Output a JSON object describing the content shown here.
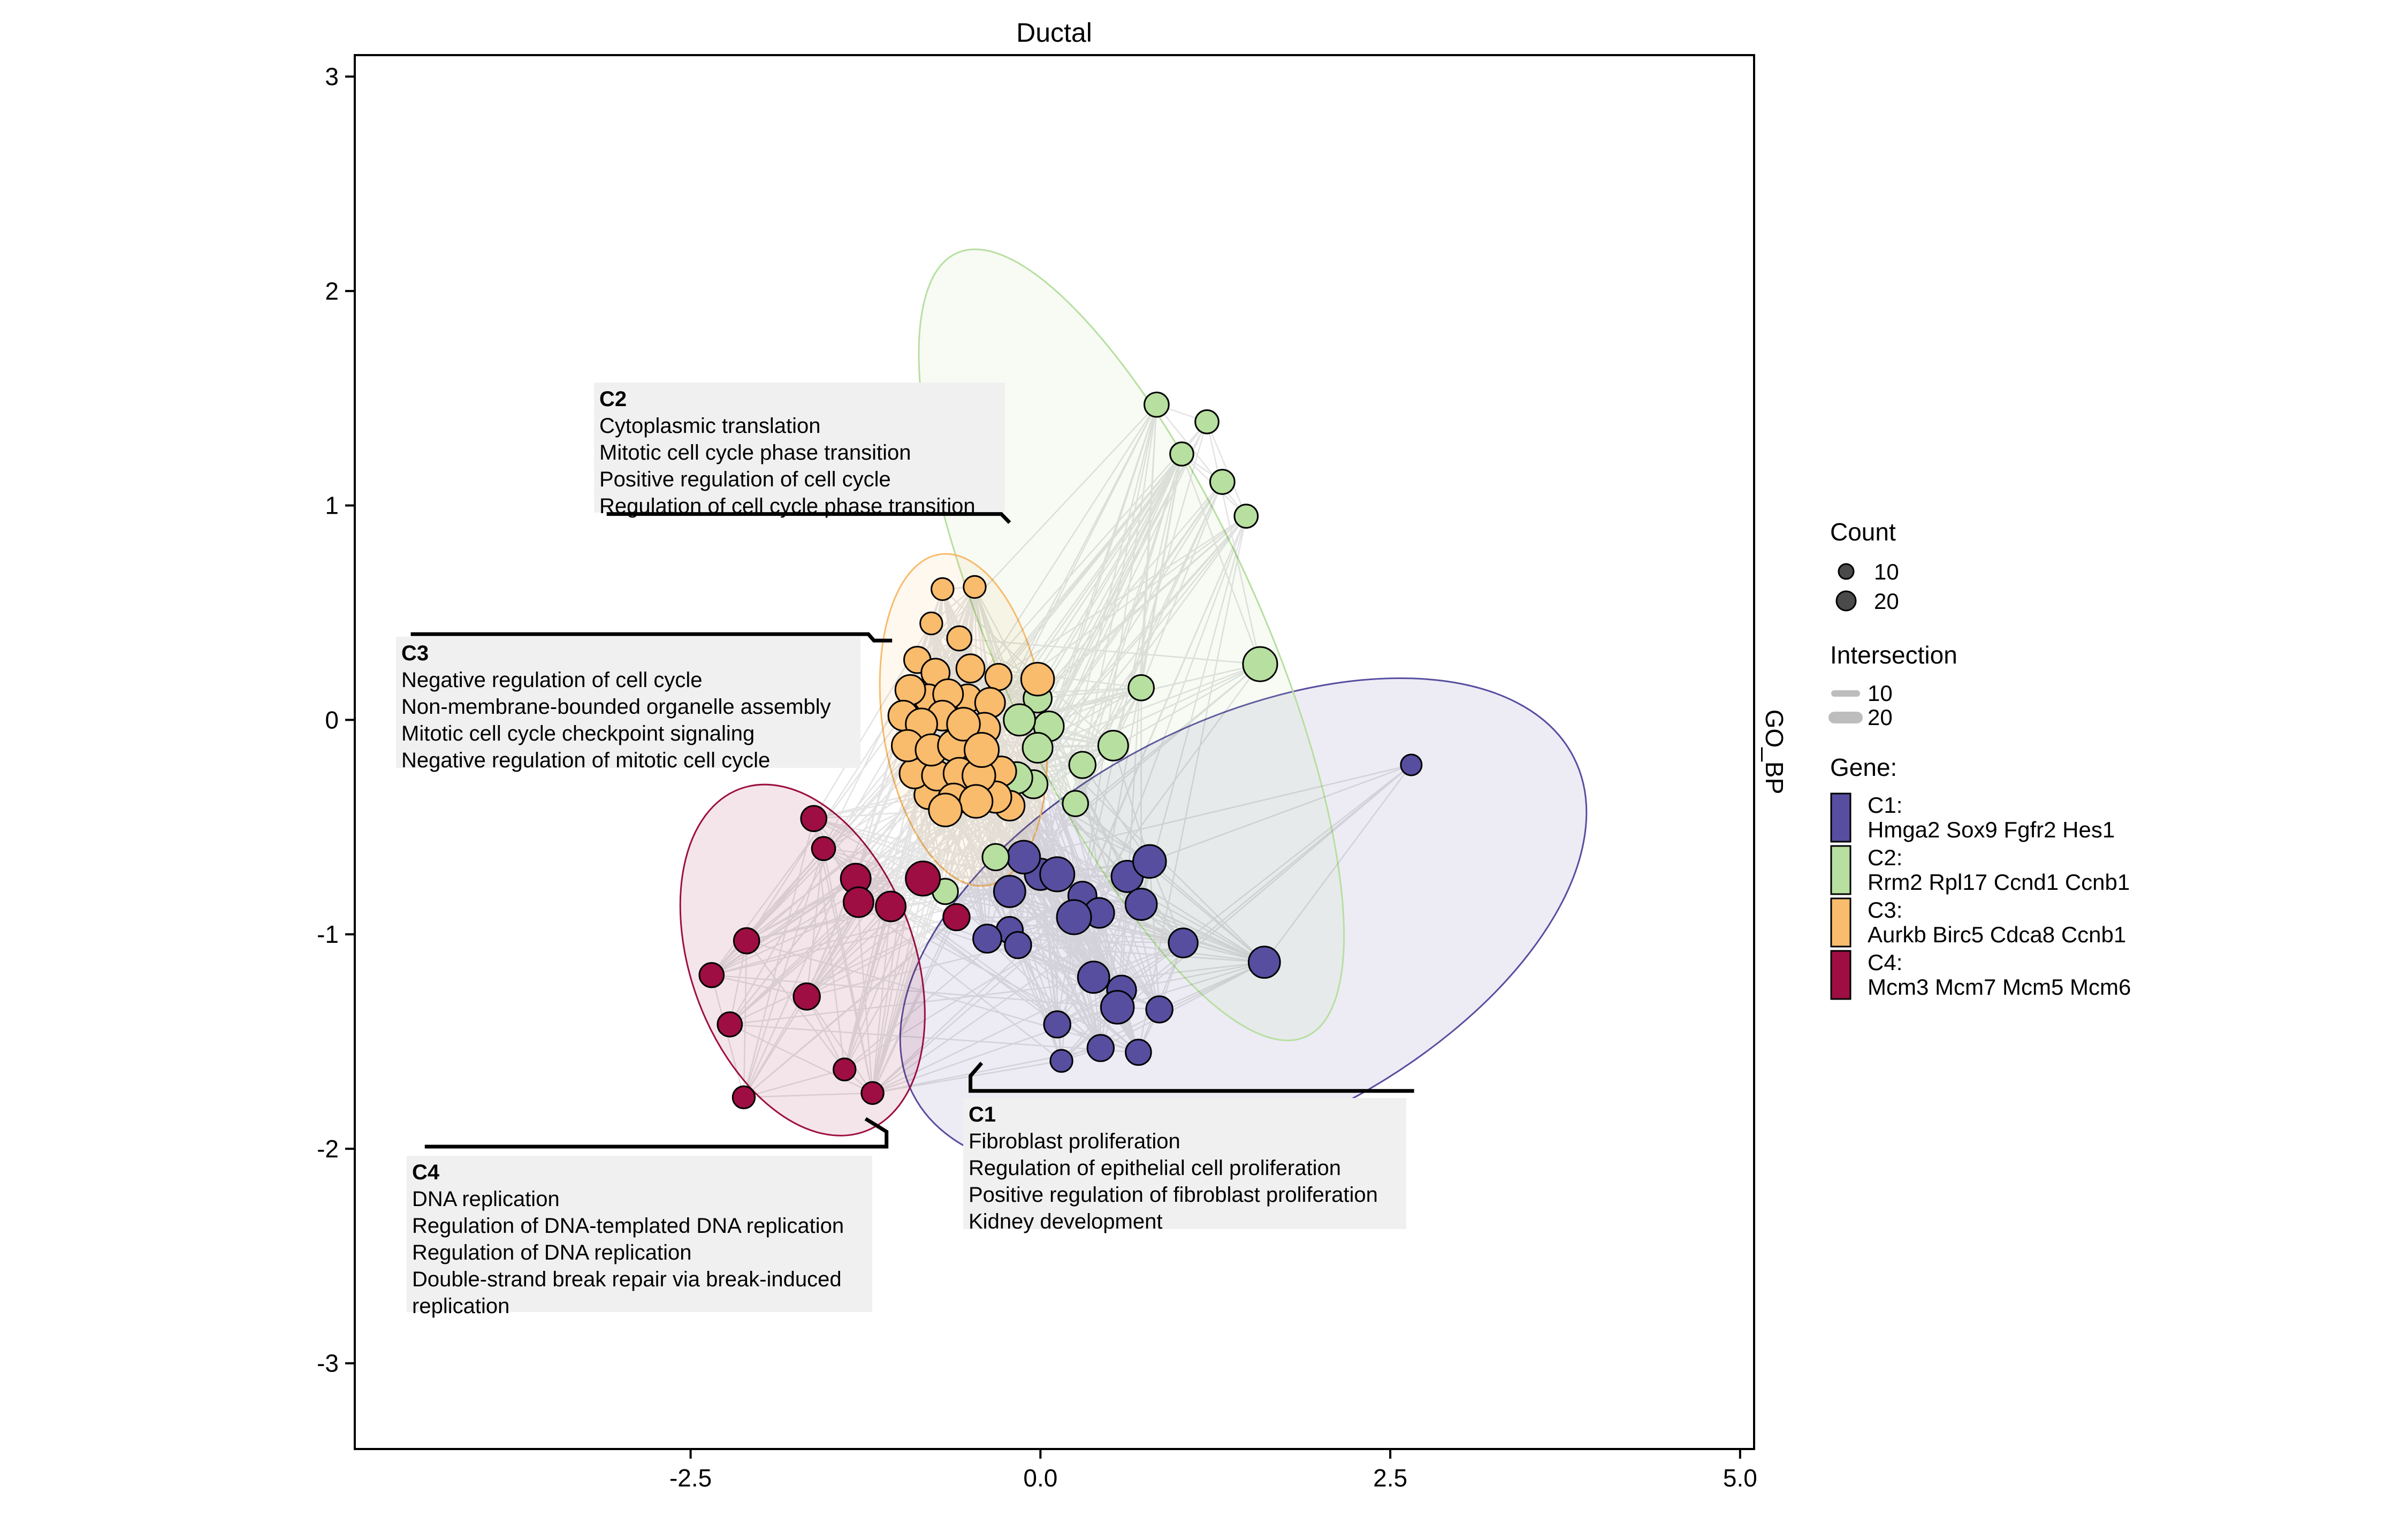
{
  "chart_data": {
    "type": "scatter",
    "title": "Ductal",
    "strip_label": "GO_BP",
    "xlim": [
      -4.9,
      5.1
    ],
    "ylim": [
      -3.4,
      3.1
    ],
    "x_ticks": [
      {
        "value": -2.5,
        "label": "-2.5"
      },
      {
        "value": 0,
        "label": "0.0"
      },
      {
        "value": 2.5,
        "label": "2.5"
      },
      {
        "value": 5,
        "label": "5.0"
      }
    ],
    "y_ticks": [
      {
        "value": -3,
        "label": "-3"
      },
      {
        "value": -2,
        "label": "-2"
      },
      {
        "value": -1,
        "label": "-1"
      },
      {
        "value": 0,
        "label": "0"
      },
      {
        "value": 1,
        "label": "1"
      },
      {
        "value": 2,
        "label": "2"
      },
      {
        "value": 3,
        "label": "3"
      }
    ],
    "clusters": [
      {
        "id": "C1",
        "color": "#574ea0",
        "genes": "Hmga2 Sox9 Fgfr2 Hes1",
        "terms": [
          "Fibroblast proliferation",
          "Regulation of epithelial cell proliferation",
          "Positive regulation of fibroblast proliferation",
          "Kidney development"
        ],
        "ellipse": {
          "cx": 1.45,
          "cy": -0.96,
          "rx": 2.65,
          "ry": 0.95,
          "angle": 27
        },
        "points": [
          {
            "x": 2.65,
            "y": -0.21,
            "count": 5
          },
          {
            "x": -0.12,
            "y": -0.64,
            "count": 18
          },
          {
            "x": 0.0,
            "y": -0.72,
            "count": 16
          },
          {
            "x": 0.12,
            "y": -0.72,
            "count": 20
          },
          {
            "x": -0.22,
            "y": -0.8,
            "count": 16
          },
          {
            "x": 0.62,
            "y": -0.73,
            "count": 16
          },
          {
            "x": 0.78,
            "y": -0.66,
            "count": 18
          },
          {
            "x": 0.3,
            "y": -0.82,
            "count": 12
          },
          {
            "x": 0.72,
            "y": -0.86,
            "count": 16
          },
          {
            "x": 0.42,
            "y": -0.9,
            "count": 14
          },
          {
            "x": 0.24,
            "y": -0.92,
            "count": 20
          },
          {
            "x": -0.38,
            "y": -1.02,
            "count": 12
          },
          {
            "x": -0.22,
            "y": -0.98,
            "count": 10
          },
          {
            "x": -0.16,
            "y": -1.05,
            "count": 10
          },
          {
            "x": 1.02,
            "y": -1.04,
            "count": 13
          },
          {
            "x": 1.6,
            "y": -1.13,
            "count": 16
          },
          {
            "x": 0.38,
            "y": -1.2,
            "count": 16
          },
          {
            "x": 0.58,
            "y": -1.26,
            "count": 13
          },
          {
            "x": 0.55,
            "y": -1.34,
            "count": 18
          },
          {
            "x": 0.85,
            "y": -1.35,
            "count": 10
          },
          {
            "x": 0.12,
            "y": -1.42,
            "count": 10
          },
          {
            "x": 0.43,
            "y": -1.53,
            "count": 10
          },
          {
            "x": 0.7,
            "y": -1.55,
            "count": 9
          },
          {
            "x": 0.15,
            "y": -1.59,
            "count": 6
          }
        ]
      },
      {
        "id": "C2",
        "color": "#b7df9f",
        "genes": "Rrm2 Rpl17 Ccnd1 Ccnb1",
        "terms": [
          "Cytoplasmic translation",
          "Mitotic cell cycle phase transition",
          "Positive regulation of cell cycle",
          "Regulation of cell cycle phase transition"
        ],
        "ellipse": {
          "cx": 0.65,
          "cy": 0.35,
          "rx": 0.95,
          "ry": 2.0,
          "angle": 24
        },
        "points": [
          {
            "x": 0.83,
            "y": 1.47,
            "count": 8
          },
          {
            "x": 1.19,
            "y": 1.39,
            "count": 7
          },
          {
            "x": 1.01,
            "y": 1.24,
            "count": 7
          },
          {
            "x": 1.3,
            "y": 1.11,
            "count": 8
          },
          {
            "x": 1.47,
            "y": 0.95,
            "count": 7
          },
          {
            "x": 1.57,
            "y": 0.26,
            "count": 20
          },
          {
            "x": 0.72,
            "y": 0.15,
            "count": 9
          },
          {
            "x": -0.02,
            "y": 0.1,
            "count": 12
          },
          {
            "x": -0.15,
            "y": 0.0,
            "count": 16
          },
          {
            "x": 0.06,
            "y": -0.03,
            "count": 14
          },
          {
            "x": -0.02,
            "y": -0.13,
            "count": 14
          },
          {
            "x": 0.52,
            "y": -0.12,
            "count": 14
          },
          {
            "x": 0.3,
            "y": -0.21,
            "count": 10
          },
          {
            "x": -0.17,
            "y": -0.27,
            "count": 16
          },
          {
            "x": -0.05,
            "y": -0.3,
            "count": 12
          },
          {
            "x": 0.25,
            "y": -0.39,
            "count": 9
          },
          {
            "x": -0.32,
            "y": -0.64,
            "count": 10
          },
          {
            "x": -0.68,
            "y": -0.8,
            "count": 9
          }
        ]
      },
      {
        "id": "C3",
        "color": "#f9bb6c",
        "genes": "Aurkb Birc5 Cdca8 Ccnb1",
        "terms": [
          "Negative regulation of cell cycle",
          "Non-membrane-bounded organelle assembly",
          "Mitotic cell cycle checkpoint signaling",
          "Negative regulation of mitotic cell cycle"
        ],
        "ellipse": {
          "cx": -0.55,
          "cy": 0.0,
          "rx": 0.58,
          "ry": 0.78,
          "angle": 8
        },
        "points": [
          {
            "x": -0.7,
            "y": 0.61,
            "count": 6
          },
          {
            "x": -0.47,
            "y": 0.62,
            "count": 6
          },
          {
            "x": -0.78,
            "y": 0.45,
            "count": 6
          },
          {
            "x": -0.58,
            "y": 0.38,
            "count": 8
          },
          {
            "x": -0.88,
            "y": 0.28,
            "count": 10
          },
          {
            "x": -0.75,
            "y": 0.22,
            "count": 12
          },
          {
            "x": -0.5,
            "y": 0.24,
            "count": 12
          },
          {
            "x": -0.3,
            "y": 0.2,
            "count": 10
          },
          {
            "x": -0.02,
            "y": 0.19,
            "count": 18
          },
          {
            "x": -0.93,
            "y": 0.14,
            "count": 14
          },
          {
            "x": -0.8,
            "y": 0.1,
            "count": 12
          },
          {
            "x": -0.66,
            "y": 0.12,
            "count": 14
          },
          {
            "x": -0.52,
            "y": 0.1,
            "count": 12
          },
          {
            "x": -0.36,
            "y": 0.08,
            "count": 14
          },
          {
            "x": -0.98,
            "y": 0.02,
            "count": 14
          },
          {
            "x": -0.85,
            "y": -0.02,
            "count": 16
          },
          {
            "x": -0.7,
            "y": 0.02,
            "count": 14
          },
          {
            "x": -0.55,
            "y": -0.02,
            "count": 18
          },
          {
            "x": -0.4,
            "y": -0.04,
            "count": 16
          },
          {
            "x": -0.95,
            "y": -0.12,
            "count": 16
          },
          {
            "x": -0.78,
            "y": -0.14,
            "count": 16
          },
          {
            "x": -0.62,
            "y": -0.12,
            "count": 16
          },
          {
            "x": -0.42,
            "y": -0.14,
            "count": 20
          },
          {
            "x": -0.9,
            "y": -0.25,
            "count": 14
          },
          {
            "x": -0.74,
            "y": -0.26,
            "count": 14
          },
          {
            "x": -0.58,
            "y": -0.25,
            "count": 16
          },
          {
            "x": -0.44,
            "y": -0.26,
            "count": 18
          },
          {
            "x": -0.28,
            "y": -0.24,
            "count": 14
          },
          {
            "x": -0.8,
            "y": -0.35,
            "count": 12
          },
          {
            "x": -0.62,
            "y": -0.37,
            "count": 16
          },
          {
            "x": -0.46,
            "y": -0.38,
            "count": 18
          },
          {
            "x": -0.32,
            "y": -0.36,
            "count": 16
          },
          {
            "x": -0.22,
            "y": -0.4,
            "count": 14
          },
          {
            "x": -0.68,
            "y": -0.42,
            "count": 18
          }
        ]
      },
      {
        "id": "C4",
        "color": "#9e0e42",
        "genes": "Mcm3 Mcm7 Mcm5 Mcm6",
        "terms": [
          "DNA replication",
          "Regulation of DNA-templated DNA replication",
          "Regulation of DNA replication",
          "Double-strand break repair via break-induced replication"
        ],
        "ellipse": {
          "cx": -1.7,
          "cy": -1.12,
          "rx": 0.8,
          "ry": 0.85,
          "angle": 20
        },
        "points": [
          {
            "x": -1.62,
            "y": -0.46,
            "count": 9
          },
          {
            "x": -1.55,
            "y": -0.6,
            "count": 7
          },
          {
            "x": -1.32,
            "y": -0.74,
            "count": 14
          },
          {
            "x": -0.84,
            "y": -0.74,
            "count": 20
          },
          {
            "x": -1.3,
            "y": -0.85,
            "count": 14
          },
          {
            "x": -1.07,
            "y": -0.87,
            "count": 14
          },
          {
            "x": -0.6,
            "y": -0.92,
            "count": 10
          },
          {
            "x": -2.1,
            "y": -1.03,
            "count": 9
          },
          {
            "x": -2.35,
            "y": -1.19,
            "count": 8
          },
          {
            "x": -1.67,
            "y": -1.29,
            "count": 10
          },
          {
            "x": -2.22,
            "y": -1.42,
            "count": 8
          },
          {
            "x": -1.4,
            "y": -1.63,
            "count": 6
          },
          {
            "x": -2.12,
            "y": -1.76,
            "count": 6
          },
          {
            "x": -1.2,
            "y": -1.74,
            "count": 6
          }
        ]
      }
    ],
    "label_boxes": [
      {
        "id": "C2",
        "leader": [
          [
            -3.1,
            0.96
          ],
          [
            -0.28,
            0.96
          ],
          [
            -0.22,
            0.92
          ]
        ]
      },
      {
        "id": "C3",
        "leader": [
          [
            -4.5,
            0.4
          ],
          [
            -1.23,
            0.4
          ],
          [
            -1.19,
            0.37
          ],
          [
            -1.06,
            0.37
          ]
        ]
      },
      {
        "id": "C4",
        "leader": [
          [
            -4.4,
            -1.99
          ],
          [
            -1.1,
            -1.99
          ],
          [
            -1.1,
            -1.92
          ],
          [
            -1.25,
            -1.86
          ]
        ]
      },
      {
        "id": "C1",
        "leader": [
          [
            2.67,
            -1.73
          ],
          [
            -0.5,
            -1.73
          ],
          [
            -0.5,
            -1.66
          ],
          [
            -0.42,
            -1.6
          ]
        ]
      }
    ],
    "legend": {
      "count_title": "Count",
      "count_items": [
        {
          "label": "10",
          "value": 10
        },
        {
          "label": "20",
          "value": 20
        }
      ],
      "intersection_title": "Intersection",
      "intersection_items": [
        {
          "label": "10",
          "value": 10
        },
        {
          "label": "20",
          "value": 20
        }
      ],
      "gene_title": "Gene:",
      "gene_items": [
        {
          "id": "C1:",
          "genes": "Hmga2 Sox9 Fgfr2 Hes1",
          "color": "#574ea0"
        },
        {
          "id": "C2:",
          "genes": "Rrm2 Rpl17 Ccnd1 Ccnb1",
          "color": "#b7df9f"
        },
        {
          "id": "C3:",
          "genes": "Aurkb Birc5 Cdca8 Ccnb1",
          "color": "#f9bb6c"
        },
        {
          "id": "C4:",
          "genes": "Mcm3 Mcm7 Mcm5 Mcm6",
          "color": "#9e0e42"
        }
      ]
    }
  }
}
